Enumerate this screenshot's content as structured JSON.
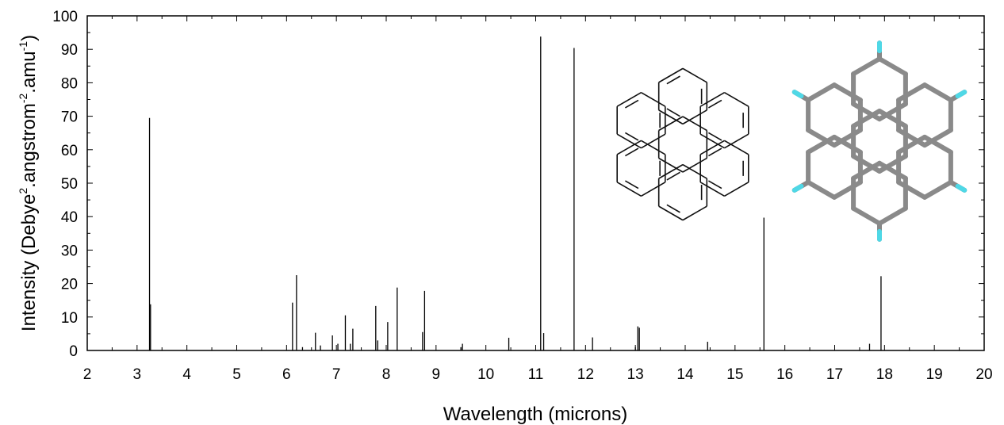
{
  "chart_data": {
    "type": "bar",
    "title": "",
    "xlabel": "Wavelength (microns)",
    "ylabel": {
      "base": "Intensity (Debye",
      "sup1": "2",
      "mid": ".angstrom",
      "sup2": "-2",
      "mid2": ".amu",
      "sup3": "-1",
      "end": ")"
    },
    "xlim": [
      2,
      20
    ],
    "ylim": [
      0,
      100
    ],
    "x_ticks": [
      "2",
      "3",
      "4",
      "5",
      "6",
      "7",
      "8",
      "9",
      "10",
      "11",
      "12",
      "13",
      "14",
      "15",
      "16",
      "17",
      "18",
      "19",
      "20"
    ],
    "y_ticks": [
      "0",
      "10",
      "20",
      "30",
      "40",
      "50",
      "60",
      "70",
      "80",
      "90",
      "100"
    ],
    "grid": false,
    "legend": "none",
    "bar_color": "#000000",
    "series": [
      {
        "x": [
          3.25,
          3.27,
          6.12,
          6.2,
          6.32,
          6.58,
          6.68,
          6.92,
          7.03,
          7.18,
          7.28,
          7.33,
          7.79,
          7.83,
          8.03,
          8.22,
          8.73,
          8.77,
          9.5,
          9.53,
          10.46,
          11.1,
          11.16,
          11.77,
          12.14,
          13.0,
          13.05,
          13.08,
          14.45,
          15.58,
          17.7,
          17.93
        ],
        "values": [
          69.5,
          13.8,
          14.3,
          22.5,
          1.0,
          5.3,
          1.5,
          4.5,
          2.0,
          10.5,
          2.0,
          6.5,
          13.3,
          3.0,
          8.5,
          18.8,
          5.5,
          17.8,
          1.0,
          2.0,
          3.8,
          93.8,
          5.2,
          90.4,
          3.9,
          1.0,
          7.2,
          6.8,
          2.6,
          39.7,
          2.0,
          22.2
        ]
      }
    ],
    "insets": [
      {
        "name": "coronene-kekule-structure"
      },
      {
        "name": "coronene-ball-and-stick-model"
      }
    ]
  }
}
